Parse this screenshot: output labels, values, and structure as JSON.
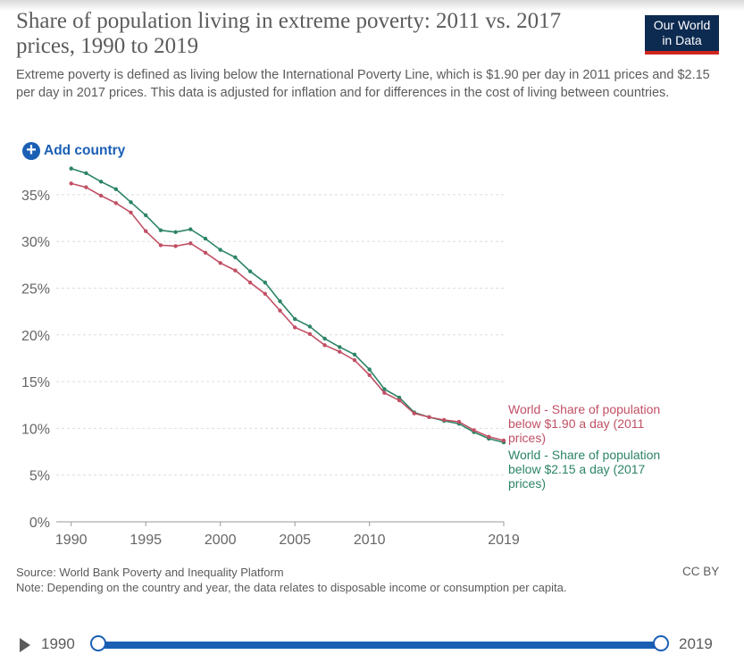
{
  "title": "Share of population living in extreme poverty: 2011 vs. 2017 prices, 1990 to 2019",
  "logo": {
    "line1": "Our World",
    "line2": "in Data"
  },
  "subtitle": "Extreme poverty is defined as living below the International Poverty Line, which is $1.90 per day in 2011 prices and $2.15 per day in 2017 prices. This data is adjusted for inflation and for differences in the cost of living between countries.",
  "add_country_label": "Add country",
  "source": "Source: World Bank Poverty and Inequality Platform",
  "note": "Note: Depending on the country and year, the data relates to disposable income or consumption per capita.",
  "license": "CC BY",
  "timeline": {
    "start": "1990",
    "end": "2019"
  },
  "colors": {
    "series_2011": "#c15065",
    "series_2017": "#2c8465",
    "accent": "#1a5fb4"
  },
  "chart_data": {
    "type": "line",
    "title": "Share of population living in extreme poverty: 2011 vs. 2017 prices, 1990 to 2019",
    "x": [
      1990,
      1991,
      1992,
      1993,
      1994,
      1995,
      1996,
      1997,
      1998,
      1999,
      2000,
      2001,
      2002,
      2003,
      2004,
      2005,
      2006,
      2007,
      2008,
      2009,
      2010,
      2011,
      2012,
      2013,
      2014,
      2015,
      2016,
      2017,
      2018,
      2019
    ],
    "xlim": [
      1989,
      2019
    ],
    "ylim": [
      0,
      37
    ],
    "xticks": [
      {
        "value": 1990,
        "label": "1990"
      },
      {
        "value": 1995,
        "label": "1995"
      },
      {
        "value": 2000,
        "label": "2000"
      },
      {
        "value": 2005,
        "label": "2005"
      },
      {
        "value": 2010,
        "label": "2010"
      },
      {
        "value": 2019,
        "label": "2019"
      }
    ],
    "yticks": [
      {
        "value": 0,
        "label": "0%"
      },
      {
        "value": 5,
        "label": "5%"
      },
      {
        "value": 10,
        "label": "10%"
      },
      {
        "value": 15,
        "label": "15%"
      },
      {
        "value": 20,
        "label": "20%"
      },
      {
        "value": 25,
        "label": "25%"
      },
      {
        "value": 30,
        "label": "30%"
      },
      {
        "value": 35,
        "label": "35%"
      }
    ],
    "series": [
      {
        "name": "World - Share of population below $1.90 a day (2011 prices)",
        "key": "series_2011",
        "values": [
          36.2,
          35.8,
          34.9,
          34.1,
          33.1,
          31.1,
          29.6,
          29.5,
          29.8,
          28.8,
          27.7,
          26.9,
          25.6,
          24.4,
          22.6,
          20.8,
          20.1,
          18.9,
          18.2,
          17.3,
          15.7,
          13.8,
          13.0,
          11.6,
          11.2,
          10.9,
          10.7,
          9.8,
          9.1,
          8.7
        ]
      },
      {
        "name": "World - Share of population below $2.15 a day (2017 prices)",
        "key": "series_2017",
        "values": [
          37.8,
          37.3,
          36.4,
          35.6,
          34.2,
          32.8,
          31.2,
          31.0,
          31.3,
          30.3,
          29.1,
          28.3,
          26.8,
          25.6,
          23.6,
          21.7,
          20.9,
          19.6,
          18.7,
          17.9,
          16.3,
          14.2,
          13.3,
          11.7,
          11.2,
          10.8,
          10.5,
          9.6,
          8.9,
          8.5
        ]
      }
    ]
  }
}
